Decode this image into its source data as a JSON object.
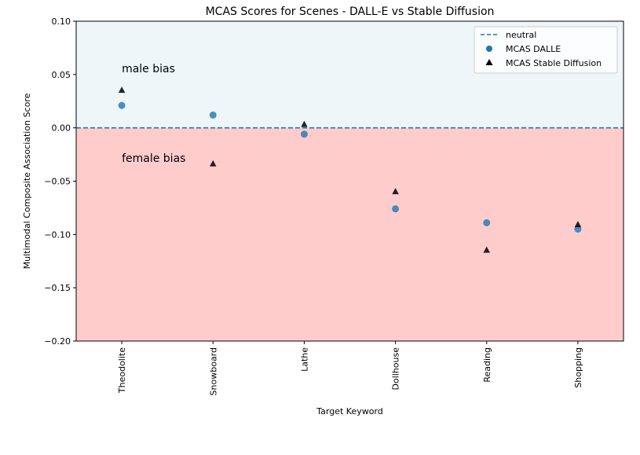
{
  "chart_data": {
    "type": "scatter",
    "title": "MCAS Scores for Scenes - DALL-E vs Stable Diffusion",
    "xlabel": "Target Keyword",
    "ylabel": "Multimodal Composite Association Score",
    "ylim": [
      -0.2,
      0.1
    ],
    "yticks": [
      0.1,
      0.05,
      0.0,
      -0.05,
      -0.1,
      -0.15,
      -0.2
    ],
    "ytick_labels": [
      "0.10",
      "0.05",
      "0.00",
      "−0.05",
      "−0.10",
      "−0.15",
      "−0.20"
    ],
    "categories": [
      "Theodolite",
      "Snowboard",
      "Lathe",
      "Dollhouse",
      "Reading",
      "Shopping"
    ],
    "series": [
      {
        "name": "MCAS DALLE",
        "marker": "circle",
        "color": "#1f77b4",
        "values": [
          0.021,
          0.012,
          -0.006,
          -0.076,
          -0.089,
          -0.095
        ]
      },
      {
        "name": "MCAS Stable Diffusion",
        "marker": "triangle",
        "color": "#000000",
        "values": [
          0.035,
          -0.034,
          0.003,
          -0.06,
          -0.115,
          -0.091
        ]
      }
    ],
    "reference_line": {
      "name": "neutral",
      "value": 0.0,
      "color": "#1f77b4",
      "style": "dashed"
    },
    "regions": [
      {
        "from": 0.0,
        "to": 0.1,
        "color": "#eef6fa"
      },
      {
        "from": -0.2,
        "to": 0.0,
        "color": "#ffcccc"
      }
    ],
    "annotations": [
      {
        "text": "male bias",
        "x_index": 0,
        "y": 0.052
      },
      {
        "text": "female bias",
        "x_index": 0,
        "y": -0.032
      }
    ],
    "legend_position": "top-right",
    "legend": [
      "neutral",
      "MCAS DALLE",
      "MCAS Stable Diffusion"
    ]
  }
}
